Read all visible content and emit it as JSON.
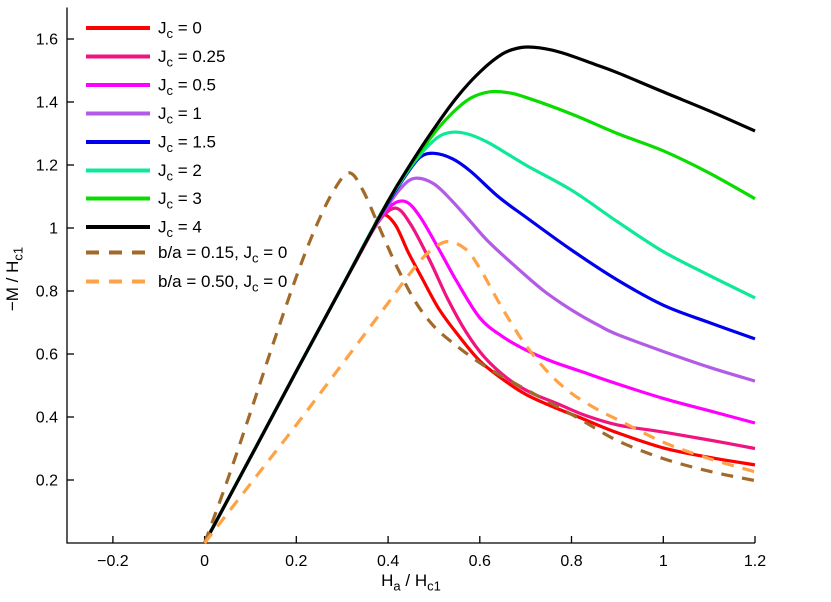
{
  "figure": {
    "background": "#ffffff"
  },
  "chart_data": {
    "type": "line",
    "title": "",
    "xlabel": "H_a / H_c1",
    "ylabel": "-M / H_c1",
    "xlabel_parts": [
      {
        "t": "H"
      },
      {
        "t": "a",
        "sub": true
      },
      {
        "t": " / H"
      },
      {
        "t": "c1",
        "sub": true
      }
    ],
    "ylabel_parts": [
      {
        "t": "−M / H"
      },
      {
        "t": "c1",
        "sub": true
      }
    ],
    "xlim": [
      -0.3,
      1.2
    ],
    "ylim": [
      0,
      1.7
    ],
    "grid": false,
    "box": false,
    "legend_position": "upper-left-inside-no-box",
    "x_ticks": [
      {
        "value": -0.2,
        "label": "−0.2"
      },
      {
        "value": 0,
        "label": "0"
      },
      {
        "value": 0.2,
        "label": "0.2"
      },
      {
        "value": 0.4,
        "label": "0.4"
      },
      {
        "value": 0.6,
        "label": "0.6"
      },
      {
        "value": 0.8,
        "label": "0.8"
      },
      {
        "value": 1,
        "label": "1"
      },
      {
        "value": 1.2,
        "label": "1.2"
      }
    ],
    "y_ticks": [
      {
        "value": 0.2,
        "label": "0.2"
      },
      {
        "value": 0.4,
        "label": "0.4"
      },
      {
        "value": 0.6,
        "label": "0.6"
      },
      {
        "value": 0.8,
        "label": "0.8"
      },
      {
        "value": 1,
        "label": "1"
      },
      {
        "value": 1.2,
        "label": "1.2"
      },
      {
        "value": 1.4,
        "label": "1.4"
      },
      {
        "value": 1.6,
        "label": "1.6"
      }
    ],
    "series": [
      {
        "id": "jc-0",
        "name": "Jc = 0",
        "color": "#ff0000",
        "dashed": false,
        "label_parts": [
          {
            "t": "J"
          },
          {
            "t": "c",
            "sub": true
          },
          {
            "t": " = 0"
          }
        ],
        "points": [
          [
            0,
            0
          ],
          [
            0.1,
            0.272
          ],
          [
            0.2,
            0.545
          ],
          [
            0.3,
            0.815
          ],
          [
            0.33,
            0.895
          ],
          [
            0.36,
            0.975
          ],
          [
            0.385,
            1.042
          ],
          [
            0.415,
            1.012
          ],
          [
            0.445,
            0.92
          ],
          [
            0.475,
            0.838
          ],
          [
            0.51,
            0.745
          ],
          [
            0.55,
            0.665
          ],
          [
            0.6,
            0.578
          ],
          [
            0.65,
            0.52
          ],
          [
            0.7,
            0.472
          ],
          [
            0.76,
            0.432
          ],
          [
            0.82,
            0.397
          ],
          [
            0.9,
            0.35
          ],
          [
            1.0,
            0.302
          ],
          [
            1.1,
            0.272
          ],
          [
            1.2,
            0.248
          ]
        ]
      },
      {
        "id": "jc-025",
        "name": "Jc = 0.25",
        "color": "#f01480",
        "dashed": false,
        "label_parts": [
          {
            "t": "J"
          },
          {
            "t": "c",
            "sub": true
          },
          {
            "t": " = 0.25"
          }
        ],
        "points": [
          [
            0,
            0
          ],
          [
            0.1,
            0.272
          ],
          [
            0.2,
            0.545
          ],
          [
            0.3,
            0.815
          ],
          [
            0.33,
            0.895
          ],
          [
            0.36,
            0.975
          ],
          [
            0.39,
            1.04
          ],
          [
            0.42,
            1.062
          ],
          [
            0.45,
            1.01
          ],
          [
            0.49,
            0.9
          ],
          [
            0.53,
            0.775
          ],
          [
            0.57,
            0.67
          ],
          [
            0.61,
            0.59
          ],
          [
            0.66,
            0.523
          ],
          [
            0.71,
            0.478
          ],
          [
            0.77,
            0.442
          ],
          [
            0.83,
            0.405
          ],
          [
            0.9,
            0.375
          ],
          [
            1.0,
            0.352
          ],
          [
            1.1,
            0.327
          ],
          [
            1.2,
            0.3
          ]
        ]
      },
      {
        "id": "jc-05",
        "name": "Jc = 0.5",
        "color": "#ff00ff",
        "dashed": false,
        "label_parts": [
          {
            "t": "J"
          },
          {
            "t": "c",
            "sub": true
          },
          {
            "t": " = 0.5"
          }
        ],
        "points": [
          [
            0,
            0
          ],
          [
            0.1,
            0.272
          ],
          [
            0.2,
            0.545
          ],
          [
            0.3,
            0.815
          ],
          [
            0.34,
            0.925
          ],
          [
            0.38,
            1.025
          ],
          [
            0.41,
            1.075
          ],
          [
            0.44,
            1.083
          ],
          [
            0.47,
            1.035
          ],
          [
            0.51,
            0.935
          ],
          [
            0.55,
            0.83
          ],
          [
            0.6,
            0.715
          ],
          [
            0.65,
            0.655
          ],
          [
            0.7,
            0.613
          ],
          [
            0.76,
            0.575
          ],
          [
            0.82,
            0.545
          ],
          [
            0.9,
            0.505
          ],
          [
            1.0,
            0.459
          ],
          [
            1.1,
            0.42
          ],
          [
            1.2,
            0.381
          ]
        ]
      },
      {
        "id": "jc-1",
        "name": "Jc = 1",
        "color": "#b35be6",
        "dashed": false,
        "label_parts": [
          {
            "t": "J"
          },
          {
            "t": "c",
            "sub": true
          },
          {
            "t": " = 1"
          }
        ],
        "points": [
          [
            0,
            0
          ],
          [
            0.1,
            0.272
          ],
          [
            0.2,
            0.545
          ],
          [
            0.3,
            0.815
          ],
          [
            0.35,
            0.95
          ],
          [
            0.39,
            1.05
          ],
          [
            0.43,
            1.13
          ],
          [
            0.46,
            1.158
          ],
          [
            0.5,
            1.14
          ],
          [
            0.54,
            1.085
          ],
          [
            0.58,
            1.02
          ],
          [
            0.62,
            0.955
          ],
          [
            0.68,
            0.875
          ],
          [
            0.74,
            0.8
          ],
          [
            0.8,
            0.74
          ],
          [
            0.86,
            0.69
          ],
          [
            0.9,
            0.662
          ],
          [
            1.0,
            0.608
          ],
          [
            1.1,
            0.558
          ],
          [
            1.2,
            0.514
          ]
        ]
      },
      {
        "id": "jc-15",
        "name": "Jc = 1.5",
        "color": "#0000ee",
        "dashed": false,
        "label_parts": [
          {
            "t": "J"
          },
          {
            "t": "c",
            "sub": true
          },
          {
            "t": " = 1.5"
          }
        ],
        "points": [
          [
            0,
            0
          ],
          [
            0.1,
            0.272
          ],
          [
            0.2,
            0.545
          ],
          [
            0.3,
            0.815
          ],
          [
            0.36,
            0.98
          ],
          [
            0.4,
            1.08
          ],
          [
            0.44,
            1.17
          ],
          [
            0.47,
            1.225
          ],
          [
            0.5,
            1.237
          ],
          [
            0.54,
            1.22
          ],
          [
            0.58,
            1.18
          ],
          [
            0.64,
            1.1
          ],
          [
            0.7,
            1.035
          ],
          [
            0.8,
            0.93
          ],
          [
            0.9,
            0.835
          ],
          [
            1.0,
            0.755
          ],
          [
            1.1,
            0.7
          ],
          [
            1.2,
            0.648
          ]
        ]
      },
      {
        "id": "jc-2",
        "name": "Jc = 2",
        "color": "#0de998",
        "dashed": false,
        "label_parts": [
          {
            "t": "J"
          },
          {
            "t": "c",
            "sub": true
          },
          {
            "t": " = 2"
          }
        ],
        "points": [
          [
            0,
            0
          ],
          [
            0.1,
            0.272
          ],
          [
            0.2,
            0.545
          ],
          [
            0.3,
            0.815
          ],
          [
            0.38,
            1.035
          ],
          [
            0.42,
            1.13
          ],
          [
            0.46,
            1.215
          ],
          [
            0.5,
            1.278
          ],
          [
            0.53,
            1.302
          ],
          [
            0.57,
            1.3
          ],
          [
            0.62,
            1.27
          ],
          [
            0.7,
            1.2
          ],
          [
            0.8,
            1.12
          ],
          [
            0.9,
            1.02
          ],
          [
            1.0,
            0.925
          ],
          [
            1.1,
            0.85
          ],
          [
            1.2,
            0.778
          ]
        ]
      },
      {
        "id": "jc-3",
        "name": "Jc = 3",
        "color": "#0bdc00",
        "dashed": false,
        "label_parts": [
          {
            "t": "J"
          },
          {
            "t": "c",
            "sub": true
          },
          {
            "t": " = 3"
          }
        ],
        "points": [
          [
            0,
            0
          ],
          [
            0.1,
            0.272
          ],
          [
            0.2,
            0.545
          ],
          [
            0.3,
            0.815
          ],
          [
            0.4,
            1.085
          ],
          [
            0.45,
            1.2
          ],
          [
            0.5,
            1.3
          ],
          [
            0.54,
            1.365
          ],
          [
            0.58,
            1.412
          ],
          [
            0.62,
            1.432
          ],
          [
            0.66,
            1.43
          ],
          [
            0.7,
            1.415
          ],
          [
            0.8,
            1.362
          ],
          [
            0.9,
            1.3
          ],
          [
            1.0,
            1.245
          ],
          [
            1.1,
            1.175
          ],
          [
            1.2,
            1.093
          ]
        ]
      },
      {
        "id": "jc-4",
        "name": "Jc = 4",
        "color": "#000000",
        "dashed": false,
        "label_parts": [
          {
            "t": "J"
          },
          {
            "t": "c",
            "sub": true
          },
          {
            "t": " = 4"
          }
        ],
        "points": [
          [
            0,
            0
          ],
          [
            0.1,
            0.272
          ],
          [
            0.2,
            0.545
          ],
          [
            0.3,
            0.815
          ],
          [
            0.4,
            1.085
          ],
          [
            0.45,
            1.205
          ],
          [
            0.5,
            1.315
          ],
          [
            0.55,
            1.415
          ],
          [
            0.6,
            1.495
          ],
          [
            0.65,
            1.553
          ],
          [
            0.69,
            1.573
          ],
          [
            0.73,
            1.572
          ],
          [
            0.78,
            1.556
          ],
          [
            0.85,
            1.52
          ],
          [
            0.9,
            1.493
          ],
          [
            1.0,
            1.432
          ],
          [
            1.1,
            1.372
          ],
          [
            1.2,
            1.308
          ]
        ]
      },
      {
        "id": "ba-015",
        "name": "b/a = 0.15, Jc = 0",
        "color": "#a16a2a",
        "dashed": true,
        "label_parts": [
          {
            "t": "b/a = 0.15, J"
          },
          {
            "t": "c",
            "sub": true
          },
          {
            "t": " = 0"
          }
        ],
        "points": [
          [
            0,
            0
          ],
          [
            0.05,
            0.2
          ],
          [
            0.1,
            0.415
          ],
          [
            0.15,
            0.635
          ],
          [
            0.2,
            0.845
          ],
          [
            0.24,
            0.995
          ],
          [
            0.28,
            1.115
          ],
          [
            0.315,
            1.175
          ],
          [
            0.345,
            1.12
          ],
          [
            0.38,
            1.005
          ],
          [
            0.42,
            0.875
          ],
          [
            0.46,
            0.765
          ],
          [
            0.5,
            0.688
          ],
          [
            0.55,
            0.625
          ],
          [
            0.6,
            0.572
          ],
          [
            0.65,
            0.528
          ],
          [
            0.7,
            0.488
          ],
          [
            0.76,
            0.44
          ],
          [
            0.82,
            0.392
          ],
          [
            0.9,
            0.325
          ],
          [
            1.0,
            0.268
          ],
          [
            1.1,
            0.228
          ],
          [
            1.2,
            0.198
          ]
        ]
      },
      {
        "id": "ba-050",
        "name": "b/a = 0.50, Jc = 0",
        "color": "#ffa245",
        "dashed": true,
        "label_parts": [
          {
            "t": "b/a = 0.50, J"
          },
          {
            "t": "c",
            "sub": true
          },
          {
            "t": " = 0"
          }
        ],
        "points": [
          [
            0,
            0
          ],
          [
            0.1,
            0.188
          ],
          [
            0.2,
            0.375
          ],
          [
            0.3,
            0.568
          ],
          [
            0.4,
            0.762
          ],
          [
            0.45,
            0.86
          ],
          [
            0.49,
            0.925
          ],
          [
            0.53,
            0.957
          ],
          [
            0.57,
            0.932
          ],
          [
            0.6,
            0.872
          ],
          [
            0.64,
            0.768
          ],
          [
            0.67,
            0.695
          ],
          [
            0.7,
            0.628
          ],
          [
            0.75,
            0.54
          ],
          [
            0.8,
            0.475
          ],
          [
            0.86,
            0.421
          ],
          [
            0.9,
            0.392
          ],
          [
            1.0,
            0.32
          ],
          [
            1.1,
            0.268
          ],
          [
            1.2,
            0.226
          ]
        ]
      }
    ]
  }
}
